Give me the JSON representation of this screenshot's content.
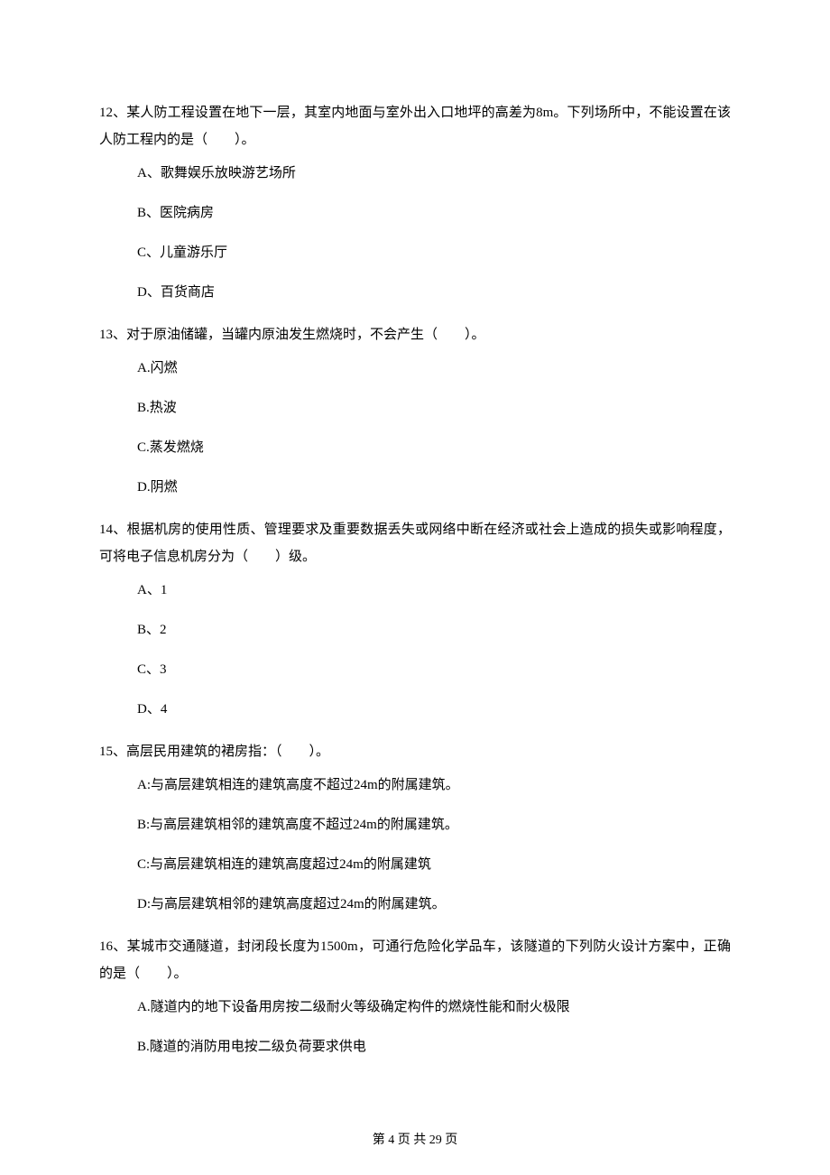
{
  "page": {
    "footer": "第 4 页 共 29 页"
  },
  "questions": [
    {
      "number": "12、",
      "text": "某人防工程设置在地下一层，其室内地面与室外出入口地坪的高差为8m。下列场所中，不能设置在该人防工程内的是（　　）。",
      "options": [
        "A、歌舞娱乐放映游艺场所",
        "B、医院病房",
        "C、儿童游乐厅",
        "D、百货商店"
      ]
    },
    {
      "number": "13、",
      "text": "对于原油储罐，当罐内原油发生燃烧时，不会产生（　　）。",
      "options": [
        "A.闪燃",
        "B.热波",
        "C.蒸发燃烧",
        "D.阴燃"
      ]
    },
    {
      "number": "14、",
      "text": "根据机房的使用性质、管理要求及重要数据丢失或网络中断在经济或社会上造成的损失或影响程度，可将电子信息机房分为（　　）级。",
      "options": [
        "A、1",
        "B、2",
        "C、3",
        "D、4"
      ]
    },
    {
      "number": "15、",
      "text": "高层民用建筑的裙房指：（　　）。",
      "options": [
        "A:与高层建筑相连的建筑高度不超过24m的附属建筑。",
        "B:与高层建筑相邻的建筑高度不超过24m的附属建筑。",
        "C:与高层建筑相连的建筑高度超过24m的附属建筑",
        "D:与高层建筑相邻的建筑高度超过24m的附属建筑。"
      ]
    },
    {
      "number": "16、",
      "text": "某城市交通隧道，封闭段长度为1500m，可通行危险化学品车，该隧道的下列防火设计方案中，正确的是（　　）。",
      "options": [
        "A.隧道内的地下设备用房按二级耐火等级确定构件的燃烧性能和耐火极限",
        "B.隧道的消防用电按二级负荷要求供电"
      ]
    }
  ]
}
